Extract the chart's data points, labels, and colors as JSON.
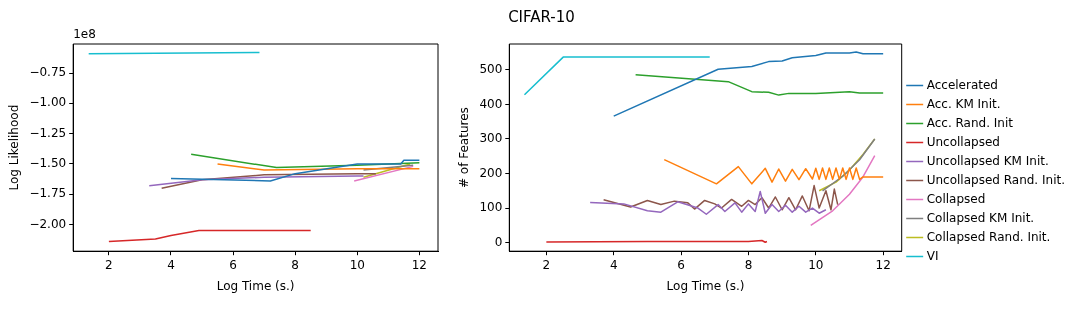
{
  "chart_data": [
    {
      "type": "line",
      "xlabel": "Log Time (s.)",
      "ylabel": "Log Likelihood",
      "annotations": [
        "1e8"
      ],
      "xlim": [
        0.85,
        12.6
      ],
      "ylim": [
        -2.22,
        -0.51
      ],
      "xticks": [
        2,
        4,
        6,
        8,
        10,
        12
      ],
      "yticks": [
        {
          "value": -2,
          "label": "−2.00"
        },
        {
          "value": -1.75,
          "label": "−1.75"
        },
        {
          "value": -1.5,
          "label": "−1.50"
        },
        {
          "value": -1.25,
          "label": "−1.25"
        },
        {
          "value": -1,
          "label": "−1.00"
        },
        {
          "value": -0.75,
          "label": "−0.75"
        }
      ],
      "grid": false,
      "legend": false,
      "series": [
        {
          "color": "#1f77b4",
          "x": [
            4,
            7.2,
            8,
            10,
            11.4,
            11.5,
            12
          ],
          "values": [
            -1.62,
            -1.64,
            -1.58,
            -1.5,
            -1.5,
            -1.47,
            -1.47
          ]
        },
        {
          "color": "#ff7f0e",
          "x": [
            5.5,
            7,
            10,
            12
          ],
          "values": [
            -1.5,
            -1.55,
            -1.54,
            -1.54
          ]
        },
        {
          "color": "#2ca02c",
          "x": [
            4.65,
            7.4,
            10,
            12
          ],
          "values": [
            -1.42,
            -1.53,
            -1.51,
            -1.49
          ]
        },
        {
          "color": "#d62728",
          "x": [
            2,
            3.5,
            4,
            4.9,
            8.5
          ],
          "values": [
            -2.14,
            -2.12,
            -2.09,
            -2.05,
            -2.05
          ]
        },
        {
          "color": "#9467bd",
          "x": [
            3.3,
            5,
            7,
            10,
            10.2
          ],
          "values": [
            -1.68,
            -1.63,
            -1.61,
            -1.6,
            -1.6
          ]
        },
        {
          "color": "#8c564b",
          "x": [
            3.7,
            5,
            7,
            10,
            10.6
          ],
          "values": [
            -1.7,
            -1.63,
            -1.59,
            -1.58,
            -1.58
          ]
        },
        {
          "color": "#e377c2",
          "x": [
            9.9,
            11.8
          ],
          "values": [
            -1.64,
            -1.52
          ]
        },
        {
          "color": "#7f7f7f",
          "x": [
            10.2,
            11.8
          ],
          "values": [
            -1.55,
            -1.51
          ]
        },
        {
          "color": "#bcbd22",
          "x": [
            10.2,
            11.7
          ],
          "values": [
            -1.61,
            -1.5
          ]
        },
        {
          "color": "#17becf",
          "x": [
            1.35,
            6.85
          ],
          "values": [
            -0.59,
            -0.58
          ]
        }
      ]
    },
    {
      "type": "line",
      "title": "CIFAR-10",
      "xlabel": "Log Time (s.)",
      "ylabel": "# of Features",
      "xlim": [
        0.9,
        12.55
      ],
      "ylim": [
        -25,
        575
      ],
      "xticks": [
        2,
        4,
        6,
        8,
        10,
        12
      ],
      "yticks": [
        0,
        100,
        200,
        300,
        400,
        500
      ],
      "grid": false,
      "legend": "right",
      "series": [
        {
          "name": "Accelerated",
          "color": "#1f77b4",
          "x": [
            4,
            7.1,
            8.1,
            8.6,
            9,
            9.3,
            10,
            10.3,
            11,
            11.2,
            11.4,
            12
          ],
          "values": [
            366,
            502,
            510,
            524,
            526,
            535,
            542,
            549,
            549,
            552,
            547,
            547
          ]
        },
        {
          "name": "Acc. KM Init.",
          "color": "#ff7f0e",
          "x": [
            5.5,
            7.05,
            7.7,
            8.1,
            8.5,
            8.7,
            8.9,
            9.1,
            9.3,
            9.5,
            9.7,
            9.9,
            10.0,
            10.1,
            10.2,
            10.3,
            10.4,
            10.5,
            10.6,
            10.7,
            10.8,
            10.9,
            11.0,
            11.1,
            11.2,
            11.3,
            11.4,
            12
          ],
          "values": [
            240,
            170,
            220,
            170,
            215,
            175,
            213,
            178,
            212,
            182,
            214,
            184,
            215,
            183,
            216,
            183,
            216,
            183,
            216,
            183,
            216,
            183,
            216,
            183,
            216,
            183,
            190,
            190
          ]
        },
        {
          "name": "Acc. Rand. Init",
          "color": "#2ca02c",
          "x": [
            4.65,
            7.4,
            8.1,
            8.6,
            8.9,
            9.2,
            10,
            11,
            11.3,
            12
          ],
          "values": [
            486,
            466,
            437,
            435,
            427,
            432,
            432,
            437,
            433,
            433
          ]
        },
        {
          "name": "Uncollapsed",
          "color": "#d62728",
          "x": [
            2,
            5,
            8,
            8.4,
            8.5,
            8.55
          ],
          "values": [
            2,
            3,
            3,
            6,
            1,
            3
          ]
        },
        {
          "name": "Uncollapsed KM Init.",
          "color": "#9467bd",
          "x": [
            3.3,
            4.3,
            5,
            5.4,
            5.9,
            6.5,
            6.75,
            7.1,
            7.3,
            7.6,
            7.8,
            8.0,
            8.2,
            8.35,
            8.5,
            8.7,
            8.9,
            9.1,
            9.3,
            9.5,
            9.7,
            9.9,
            10.1,
            10.3
          ],
          "values": [
            116,
            112,
            92,
            88,
            118,
            100,
            82,
            110,
            90,
            115,
            88,
            112,
            90,
            148,
            85,
            110,
            90,
            108,
            88,
            105,
            88,
            100,
            85,
            95
          ]
        },
        {
          "name": "Uncollapsed Rand. Init.",
          "color": "#8c564b",
          "x": [
            3.7,
            4.5,
            5,
            5.4,
            5.8,
            6.2,
            6.4,
            6.7,
            7.0,
            7.2,
            7.5,
            7.8,
            8.0,
            8.2,
            8.4,
            8.6,
            8.8,
            9.0,
            9.2,
            9.4,
            9.6,
            9.8,
            9.95,
            10.1,
            10.3,
            10.45,
            10.55,
            10.65
          ],
          "values": [
            124,
            103,
            122,
            110,
            120,
            115,
            97,
            122,
            112,
            100,
            125,
            105,
            122,
            110,
            130,
            100,
            132,
            95,
            130,
            95,
            135,
            92,
            165,
            100,
            150,
            95,
            155,
            110
          ]
        },
        {
          "name": "Collapsed",
          "color": "#e377c2",
          "x": [
            9.85,
            10.5,
            11,
            11.4,
            11.75
          ],
          "values": [
            50,
            92,
            140,
            190,
            252
          ]
        },
        {
          "name": "Collapsed KM Init.",
          "color": "#7f7f7f",
          "x": [
            10.2,
            10.8,
            11.3,
            11.75
          ],
          "values": [
            150,
            192,
            240,
            300
          ]
        },
        {
          "name": "Collapsed Rand. Init.",
          "color": "#bcbd22",
          "x": [
            10.1,
            10.6,
            11,
            11.4,
            11.75
          ],
          "values": [
            150,
            175,
            210,
            255,
            300
          ]
        },
        {
          "name": "VI",
          "color": "#17becf",
          "x": [
            1.35,
            2.5,
            6.85
          ],
          "values": [
            428,
            537,
            537
          ]
        }
      ]
    }
  ]
}
